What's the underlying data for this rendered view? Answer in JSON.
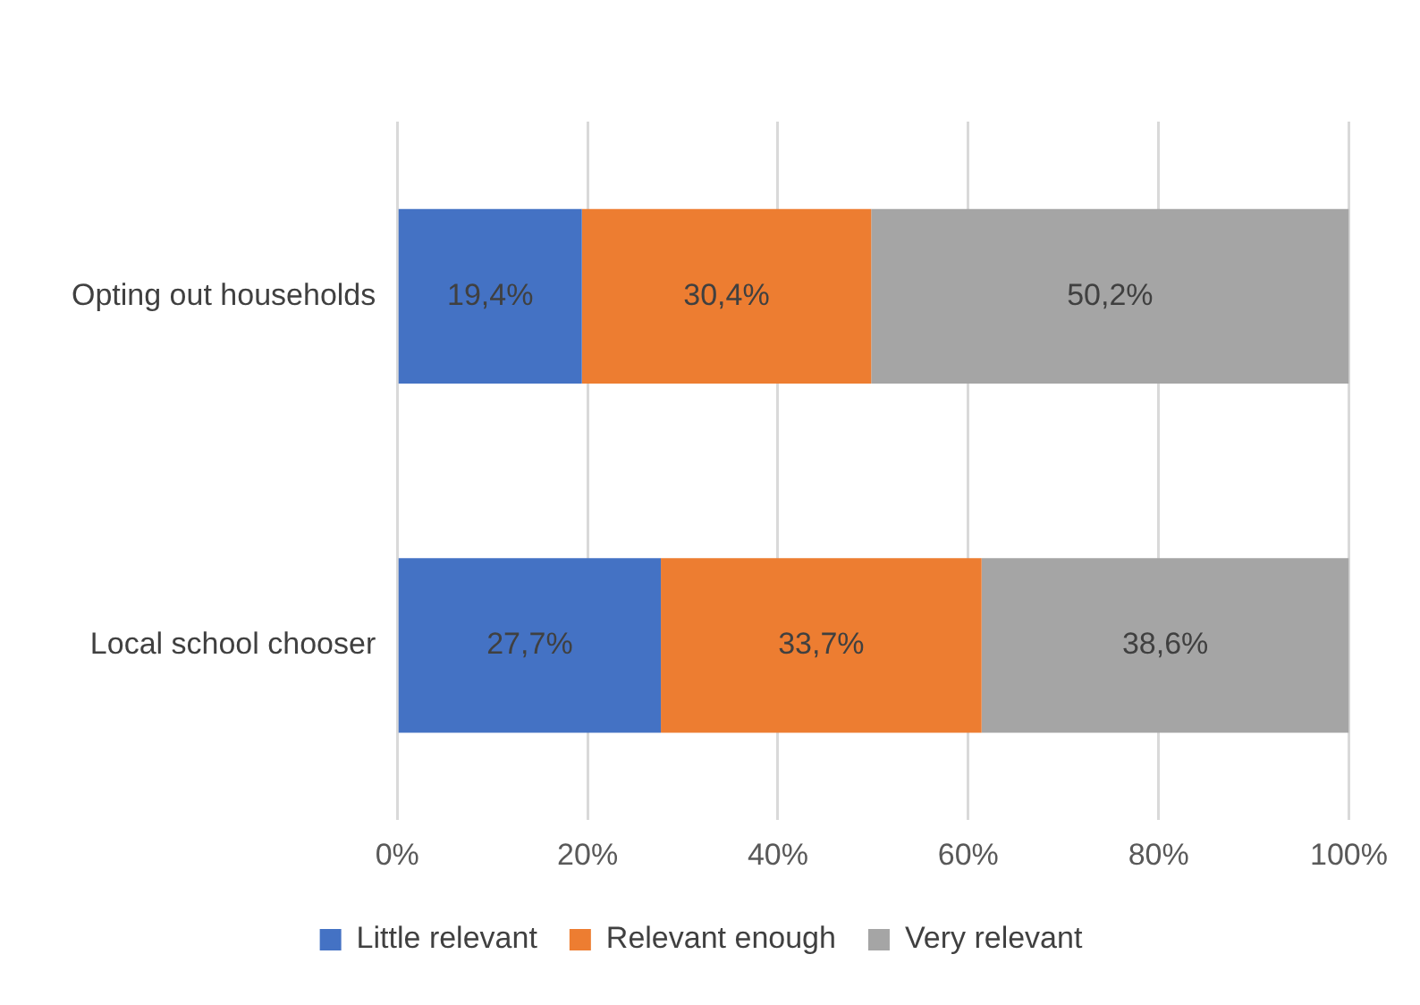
{
  "chart_data": {
    "type": "bar",
    "orientation": "horizontal",
    "stacked": true,
    "categories": [
      "Opting out households",
      "Local school chooser"
    ],
    "series": [
      {
        "name": "Little relevant",
        "color": "#4472c4",
        "values": [
          19.4,
          27.7
        ],
        "value_labels": [
          "19,4%",
          "27,7%"
        ]
      },
      {
        "name": "Relevant enough",
        "color": "#ed7d31",
        "values": [
          30.4,
          33.7
        ],
        "value_labels": [
          "30,4%",
          "33,7%"
        ]
      },
      {
        "name": "Very relevant",
        "color": "#a5a5a5",
        "values": [
          50.2,
          38.6
        ],
        "value_labels": [
          "50,2%",
          "38,6%"
        ]
      }
    ],
    "xlim": [
      0,
      100
    ],
    "xticks": [
      {
        "value": 0,
        "label": "0%"
      },
      {
        "value": 20,
        "label": "20%"
      },
      {
        "value": 40,
        "label": "40%"
      },
      {
        "value": 60,
        "label": "60%"
      },
      {
        "value": 80,
        "label": "80%"
      },
      {
        "value": 100,
        "label": "100%"
      }
    ],
    "grid": "x",
    "legend": "bottom"
  }
}
